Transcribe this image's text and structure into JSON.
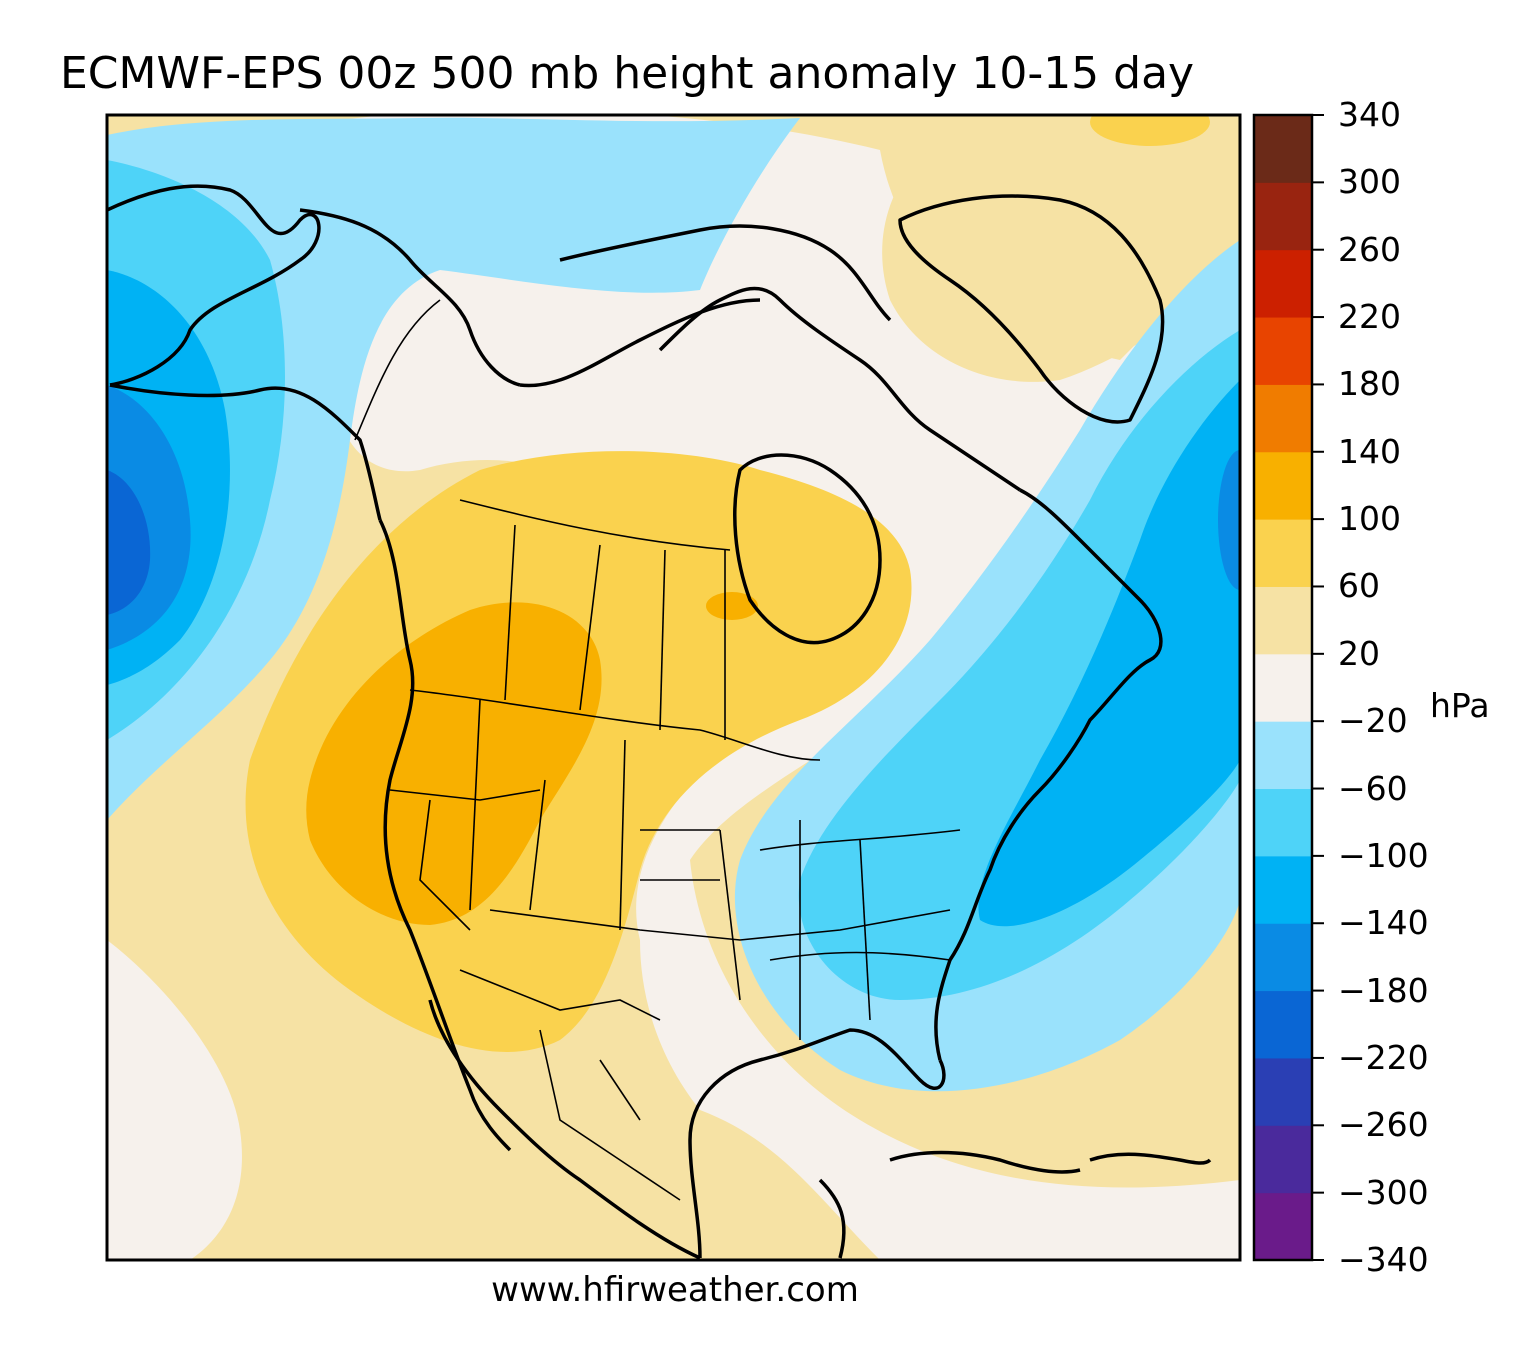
{
  "title": "ECMWF-EPS 00z 500 mb height anomaly 10-15 day",
  "credit": "www.hfirweather.com",
  "colorbar": {
    "unit": "hPa",
    "levels": [
      -340,
      -300,
      -260,
      -220,
      -180,
      -140,
      -100,
      -60,
      -20,
      20,
      60,
      100,
      140,
      180,
      220,
      260,
      300,
      340
    ],
    "labels": [
      "340",
      "300",
      "260",
      "220",
      "180",
      "140",
      "100",
      "60",
      "20",
      "−20",
      "−60",
      "−100",
      "−140",
      "−180",
      "−220",
      "−260",
      "−300",
      "−340"
    ],
    "colors": [
      "#6a1b8a",
      "#4a2a9c",
      "#2a3fb4",
      "#0a66d4",
      "#0a8be4",
      "#00b2f4",
      "#4ed3f8",
      "#9ae2fc",
      "#f6f1ec",
      "#f6e2a4",
      "#fad24e",
      "#f8b000",
      "#f07c00",
      "#e84400",
      "#cc2000",
      "#992410",
      "#6b2a18"
    ]
  },
  "map": {
    "region": "North America",
    "anomaly_field": [
      {
        "area": "Gulf of Alaska / NE Pacific",
        "bin": "-220 to -180"
      },
      {
        "area": "Bering Sea / Alaska",
        "bin": "-60 to -20"
      },
      {
        "area": "Western U.S. / British Columbia",
        "bin": "100 to 140"
      },
      {
        "area": "Canadian Prairies / Hudson Bay",
        "bin": "60 to 100"
      },
      {
        "area": "Eastern U.S.",
        "bin": "-100 to -60"
      },
      {
        "area": "Western North Atlantic",
        "bin": "-140 to -100"
      },
      {
        "area": "Greenland",
        "bin": "20 to 60"
      }
    ]
  }
}
